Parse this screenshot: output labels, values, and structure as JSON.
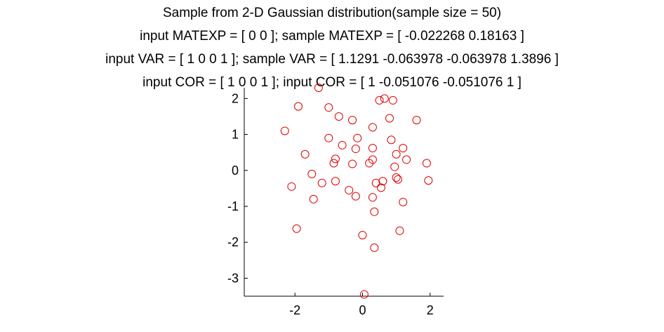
{
  "chart_data": {
    "type": "scatter",
    "title_lines": [
      "Sample from 2-D Gaussian distribution(sample size = 50)",
      "input MATEXP = [ 0  0 ]; sample MATEXP = [ -0.022268      0.18163 ]",
      "input VAR = [ 1 0 0 1 ]; sample VAR = [ 1.1291 -0.063978 -0.063978 1.3896 ]",
      "input COR = [ 1 0 0 1 ]; input COR = [ 1 -0.051076 -0.051076 1 ]"
    ],
    "xlabel": "",
    "ylabel": "",
    "xlim": [
      -3.5,
      2.4
    ],
    "ylim": [
      -3.5,
      2.3
    ],
    "xticks": [
      -2,
      0,
      2
    ],
    "yticks": [
      -3,
      -2,
      -1,
      0,
      1,
      2
    ],
    "xtick_labels": [
      "-2",
      "0",
      "2"
    ],
    "ytick_labels": [
      "-3",
      "-2",
      "-1",
      "0",
      "1",
      "2"
    ],
    "grid": false,
    "marker": "circle",
    "color": "#e00000",
    "points": [
      [
        -1.3,
        2.3
      ],
      [
        -1.9,
        1.78
      ],
      [
        -1.0,
        1.75
      ],
      [
        -0.7,
        1.5
      ],
      [
        -0.3,
        1.4
      ],
      [
        0.3,
        1.2
      ],
      [
        0.5,
        1.95
      ],
      [
        0.65,
        2.0
      ],
      [
        0.9,
        1.95
      ],
      [
        0.8,
        1.45
      ],
      [
        1.6,
        1.4
      ],
      [
        -2.3,
        1.1
      ],
      [
        -1.0,
        0.9
      ],
      [
        -0.6,
        0.7
      ],
      [
        -0.15,
        0.9
      ],
      [
        0.3,
        0.62
      ],
      [
        0.85,
        0.85
      ],
      [
        1.2,
        0.62
      ],
      [
        -1.7,
        0.45
      ],
      [
        -0.8,
        0.32
      ],
      [
        -0.85,
        0.2
      ],
      [
        -0.3,
        0.18
      ],
      [
        -0.2,
        0.6
      ],
      [
        0.2,
        0.2
      ],
      [
        0.3,
        0.3
      ],
      [
        1.0,
        0.45
      ],
      [
        1.3,
        0.3
      ],
      [
        0.95,
        0.1
      ],
      [
        1.9,
        0.2
      ],
      [
        -1.5,
        -0.1
      ],
      [
        -2.1,
        -0.45
      ],
      [
        -1.2,
        -0.35
      ],
      [
        -0.8,
        -0.3
      ],
      [
        -0.4,
        -0.55
      ],
      [
        -0.2,
        -0.72
      ],
      [
        0.4,
        -0.35
      ],
      [
        0.6,
        -0.3
      ],
      [
        0.55,
        -0.48
      ],
      [
        1.0,
        -0.2
      ],
      [
        1.05,
        -0.25
      ],
      [
        1.95,
        -0.28
      ],
      [
        -1.45,
        -0.8
      ],
      [
        0.3,
        -0.75
      ],
      [
        1.2,
        -0.88
      ],
      [
        0.35,
        -1.15
      ],
      [
        -1.95,
        -1.62
      ],
      [
        0.0,
        -1.8
      ],
      [
        1.1,
        -1.68
      ],
      [
        0.35,
        -2.15
      ],
      [
        0.05,
        -3.45
      ]
    ]
  }
}
